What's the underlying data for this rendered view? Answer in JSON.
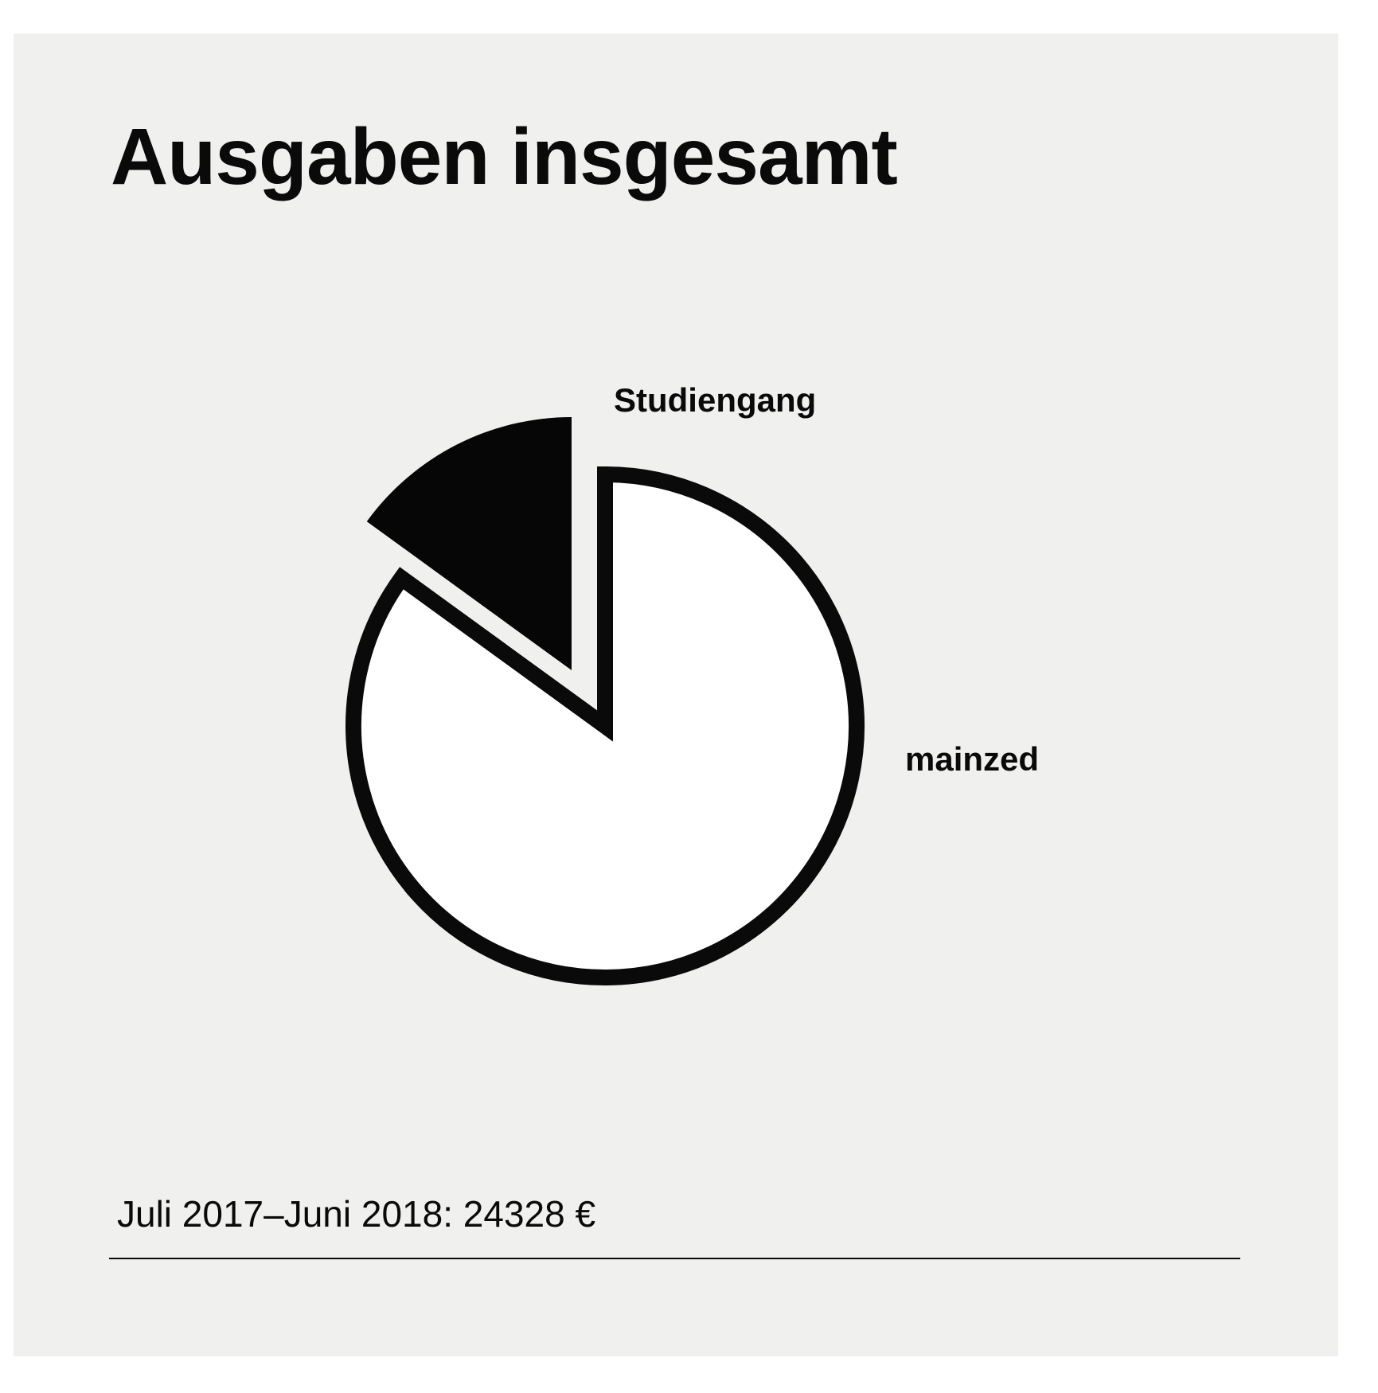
{
  "chart_data": {
    "type": "pie",
    "title": "Ausgaben insgesamt",
    "subtitle": "Juli 2017–Juni 2018: 24328 €",
    "slices": [
      {
        "label": "mainzed",
        "value": 85,
        "color": "#ffffff",
        "exploded": false
      },
      {
        "label": "Studiengang",
        "value": 15,
        "color": "#060606",
        "exploded": true
      }
    ],
    "colors": {
      "ink": "#0a0a0a",
      "background": "#f0f1ef"
    }
  }
}
